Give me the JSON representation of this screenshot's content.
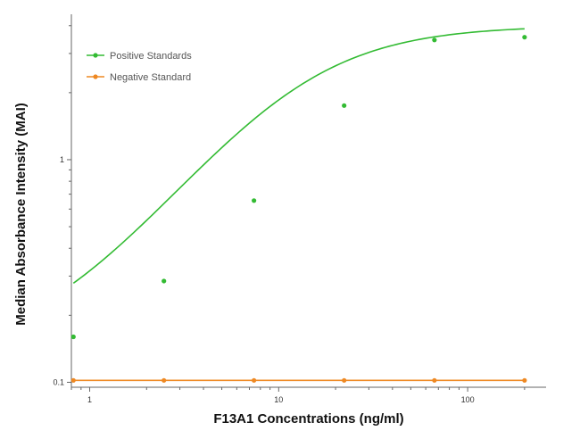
{
  "chart_data": {
    "type": "scatter",
    "xlabel": "F13A1 Concentrations (ng/ml)",
    "ylabel": "Median Absorbance Intensity (MAI)",
    "x_scale": "log",
    "y_scale": "log",
    "xlim": [
      0.8,
      260
    ],
    "ylim": [
      0.095,
      4.5
    ],
    "x_ticks": [
      1,
      10,
      100
    ],
    "x_tick_labels": [
      "1",
      "10",
      "100"
    ],
    "y_ticks": [
      0.1,
      1
    ],
    "y_tick_labels": [
      "0.1",
      "1"
    ],
    "grid": false,
    "legend_position": "top-left",
    "series": [
      {
        "name": "Positive Standards",
        "color": "#33bb33",
        "x": [
          0.82,
          2.47,
          7.4,
          22.2,
          66.7,
          200
        ],
        "y": [
          0.16,
          0.285,
          0.655,
          1.75,
          3.45,
          3.55
        ],
        "fit_curve": true,
        "fit": {
          "bottom": 0.13,
          "top": 4.0,
          "ec50": 12,
          "hill": 1.2
        }
      },
      {
        "name": "Negative Standard",
        "color": "#ee8822",
        "x": [
          0.82,
          2.47,
          7.4,
          22.2,
          66.7,
          200
        ],
        "y": [
          0.102,
          0.102,
          0.102,
          0.102,
          0.102,
          0.102
        ],
        "fit_curve": true,
        "fit": {
          "constant": 0.102
        }
      }
    ]
  }
}
